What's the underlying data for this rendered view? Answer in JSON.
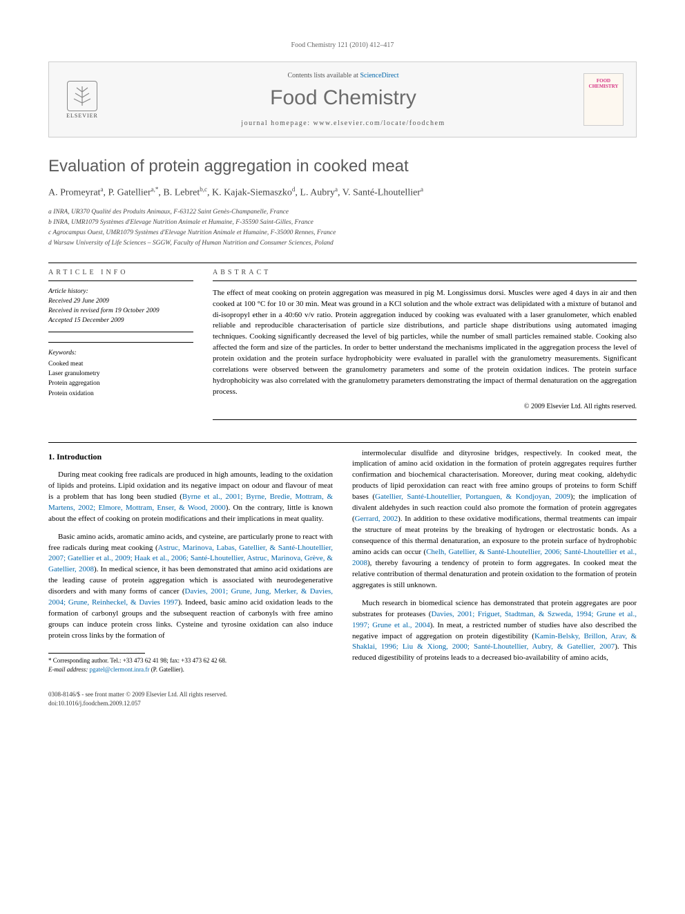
{
  "journal_header": "Food Chemistry 121 (2010) 412–417",
  "header_box": {
    "contents_prefix": "Contents lists available at ",
    "contents_link": "ScienceDirect",
    "journal_name": "Food Chemistry",
    "homepage_prefix": "journal homepage: ",
    "homepage_url": "www.elsevier.com/locate/foodchem",
    "elsevier_label": "ELSEVIER",
    "cover_line1": "FOOD",
    "cover_line2": "CHEMISTRY"
  },
  "article": {
    "title": "Evaluation of protein aggregation in cooked meat",
    "authors_html": "A. Promeyrat<sup>a</sup>, P. Gatellier<sup>a,*</sup>, B. Lebret<sup>b,c</sup>, K. Kajak-Siemaszko<sup>d</sup>, L. Aubry<sup>a</sup>, V. Santé-Lhoutellier<sup>a</sup>",
    "affiliations": [
      "a INRA, UR370 Qualité des Produits Animaux, F-63122 Saint Genès-Champanelle, France",
      "b INRA, UMR1079 Systèmes d'Elevage Nutrition Animale et Humaine, F-35590 Saint-Gilles, France",
      "c Agrocampus Ouest, UMR1079 Systèmes d'Elevage Nutrition Animale et Humaine, F-35000 Rennes, France",
      "d Warsaw University of Life Sciences – SGGW, Faculty of Human Nutrition and Consumer Sciences, Poland"
    ]
  },
  "article_info": {
    "label": "ARTICLE INFO",
    "history_label": "Article history:",
    "received": "Received 29 June 2009",
    "revised": "Received in revised form 19 October 2009",
    "accepted": "Accepted 15 December 2009",
    "keywords_label": "Keywords:",
    "keywords": [
      "Cooked meat",
      "Laser granulometry",
      "Protein aggregation",
      "Protein oxidation"
    ]
  },
  "abstract": {
    "label": "ABSTRACT",
    "text": "The effect of meat cooking on protein aggregation was measured in pig M. Longissimus dorsi. Muscles were aged 4 days in air and then cooked at 100 °C for 10 or 30 min. Meat was ground in a KCl solution and the whole extract was delipidated with a mixture of butanol and di-isopropyl ether in a 40:60 v/v ratio. Protein aggregation induced by cooking was evaluated with a laser granulometer, which enabled reliable and reproducible characterisation of particle size distributions, and particle shape distributions using automated imaging techniques. Cooking significantly decreased the level of big particles, while the number of small particles remained stable. Cooking also affected the form and size of the particles. In order to better understand the mechanisms implicated in the aggregation process the level of protein oxidation and the protein surface hydrophobicity were evaluated in parallel with the granulometry measurements. Significant correlations were observed between the granulometry parameters and some of the protein oxidation indices. The protein surface hydrophobicity was also correlated with the granulometry parameters demonstrating the impact of thermal denaturation on the aggregation process.",
    "copyright": "© 2009 Elsevier Ltd. All rights reserved."
  },
  "body": {
    "section_heading": "1. Introduction",
    "p1": "During meat cooking free radicals are produced in high amounts, leading to the oxidation of lipids and proteins. Lipid oxidation and its negative impact on odour and flavour of meat is a problem that has long been studied (Byrne et al., 2001; Byrne, Bredie, Mottram, & Martens, 2002; Elmore, Mottram, Enser, & Wood, 2000). On the contrary, little is known about the effect of cooking on protein modifications and their implications in meat quality.",
    "p2": "Basic amino acids, aromatic amino acids, and cysteine, are particularly prone to react with free radicals during meat cooking (Astruc, Marinova, Labas, Gatellier, & Santé-Lhoutellier, 2007; Gatellier et al., 2009; Haak et al., 2006; Santé-Lhoutellier, Astruc, Marinova, Grève, & Gatellier, 2008). In medical science, it has been demonstrated that amino acid oxidations are the leading cause of protein aggregation which is associated with neurodegenerative disorders and with many forms of cancer (Davies, 2001; Grune, Jung, Merker, & Davies, 2004; Grune, Reinheckel, & Davies 1997). Indeed, basic amino acid oxidation leads to the formation of carbonyl groups and the subsequent reaction of carbonyls with free amino groups can induce protein cross links. Cysteine and tyrosine oxidation can also induce protein cross links by the formation of",
    "p3": "intermolecular disulfide and dityrosine bridges, respectively. In cooked meat, the implication of amino acid oxidation in the formation of protein aggregates requires further confirmation and biochemical characterisation. Moreover, during meat cooking, aldehydic products of lipid peroxidation can react with free amino groups of proteins to form Schiff bases (Gatellier, Santé-Lhoutellier, Portanguen, & Kondjoyan, 2009); the implication of divalent aldehydes in such reaction could also promote the formation of protein aggregates (Gerrard, 2002). In addition to these oxidative modifications, thermal treatments can impair the structure of meat proteins by the breaking of hydrogen or electrostatic bonds. As a consequence of this thermal denaturation, an exposure to the protein surface of hydrophobic amino acids can occur (Chelh, Gatellier, & Santé-Lhoutellier, 2006; Santé-Lhoutellier et al., 2008), thereby favouring a tendency of protein to form aggregates. In cooked meat the relative contribution of thermal denaturation and protein oxidation to the formation of protein aggregates is still unknown.",
    "p4": "Much research in biomedical science has demonstrated that protein aggregates are poor substrates for proteases (Davies, 2001; Friguet, Stadtman, & Szweda, 1994; Grune et al., 1997; Grune et al., 2004). In meat, a restricted number of studies have also described the negative impact of aggregation on protein digestibility (Kamin-Belsky, Brillon, Arav, & Shaklai, 1996; Liu & Xiong, 2000; Santé-Lhoutellier, Aubry, & Gatellier, 2007). This reduced digestibility of proteins leads to a decreased bio-availability of amino acids,"
  },
  "footnote": {
    "corresponding": "* Corresponding author. Tel.: +33 473 62 41 98; fax: +33 473 62 42 68.",
    "email_label": "E-mail address:",
    "email": "pgatel@clermont.inra.fr",
    "email_name": "(P. Gatellier)."
  },
  "page_footer": {
    "line1": "0308-8146/$ - see front matter © 2009 Elsevier Ltd. All rights reserved.",
    "line2": "doi:10.1016/j.foodchem.2009.12.057"
  },
  "colors": {
    "link": "#0066aa",
    "title_gray": "#5a5a5a",
    "header_bg": "#f7f7f7",
    "border": "#cccccc"
  }
}
